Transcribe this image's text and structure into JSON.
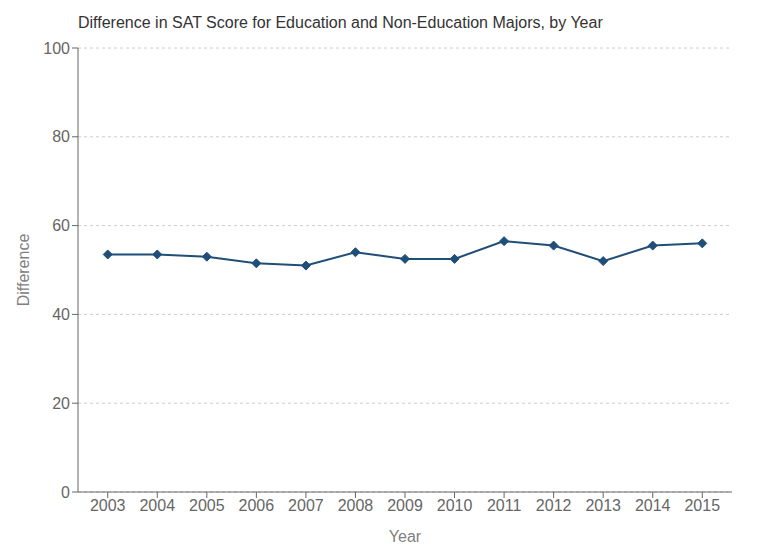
{
  "chart_data": {
    "type": "line",
    "title": "Difference in SAT Score for Education and Non-Education Majors, by Year",
    "x_label": "Year",
    "y_label": "Difference",
    "x": [
      2003,
      2004,
      2005,
      2006,
      2007,
      2008,
      2009,
      2010,
      2011,
      2012,
      2013,
      2014,
      2015
    ],
    "values": [
      53.5,
      53.5,
      53.0,
      51.5,
      51.0,
      54.0,
      52.5,
      52.5,
      56.5,
      55.5,
      52.0,
      55.5,
      56.0
    ],
    "color": "#1f4e79",
    "marker": "diamond",
    "xlim": [
      2002.4,
      2015.6
    ],
    "xticks": [
      2003,
      2004,
      2005,
      2006,
      2007,
      2008,
      2009,
      2010,
      2011,
      2012,
      2013,
      2014,
      2015
    ],
    "ylim": [
      0,
      100
    ],
    "yticks": [
      0,
      20,
      40,
      60,
      80,
      100
    ],
    "grid": "y"
  }
}
